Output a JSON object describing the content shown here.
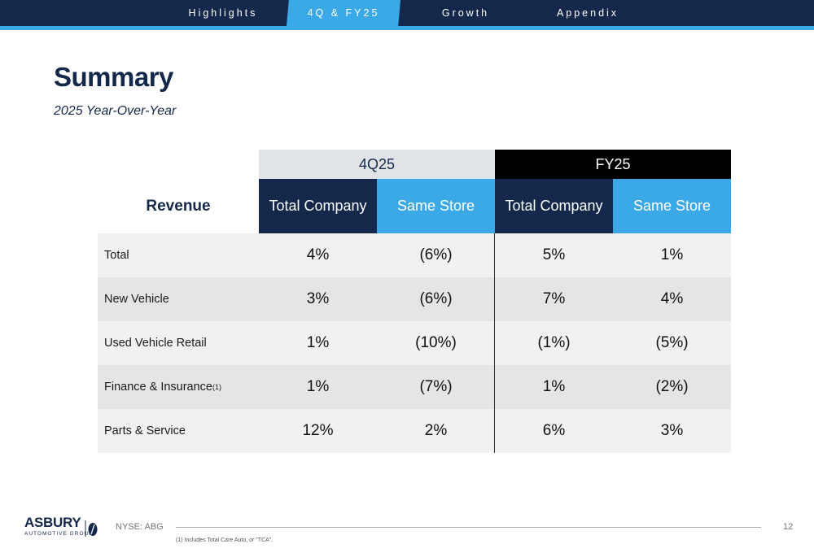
{
  "nav": {
    "tabs": [
      {
        "label": "Highlights"
      },
      {
        "label": "4Q & FY25"
      },
      {
        "label": "Growth"
      },
      {
        "label": "Appendix"
      }
    ],
    "active_tab": "4Q & FY25"
  },
  "page": {
    "title": "Summary",
    "subtitle": "2025 Year-Over-Year"
  },
  "table": {
    "group_headers": [
      "4Q25",
      "FY25"
    ],
    "row_header": "Revenue",
    "column_headers": [
      "Total Company",
      "Same Store",
      "Total Company",
      "Same Store"
    ],
    "rows": [
      {
        "label": "Total",
        "footnote_mark": "",
        "values": [
          "4%",
          "(6%)",
          "5%",
          "1%"
        ]
      },
      {
        "label": "New Vehicle",
        "footnote_mark": "",
        "values": [
          "3%",
          "(6%)",
          "7%",
          "4%"
        ]
      },
      {
        "label": "Used Vehicle Retail",
        "footnote_mark": "",
        "values": [
          "1%",
          "(10%)",
          "(1%)",
          "(5%)"
        ]
      },
      {
        "label": "Finance & Insurance",
        "footnote_mark": "(1)",
        "values": [
          "1%",
          "(7%)",
          "1%",
          "(2%)"
        ]
      },
      {
        "label": "Parts & Service",
        "footnote_mark": "",
        "values": [
          "12%",
          "2%",
          "6%",
          "3%"
        ]
      }
    ]
  },
  "footer": {
    "logo_name": "ASBURY",
    "logo_sub": "AUTOMOTIVE GROUP",
    "ticker": "NYSE: ABG",
    "page_number": "12",
    "footnote": "(1) Includes Total Care Auto, or \"TCA\"."
  },
  "colors": {
    "navy": "#14284b",
    "accent_blue": "#3ba8e8",
    "black": "#000000"
  }
}
